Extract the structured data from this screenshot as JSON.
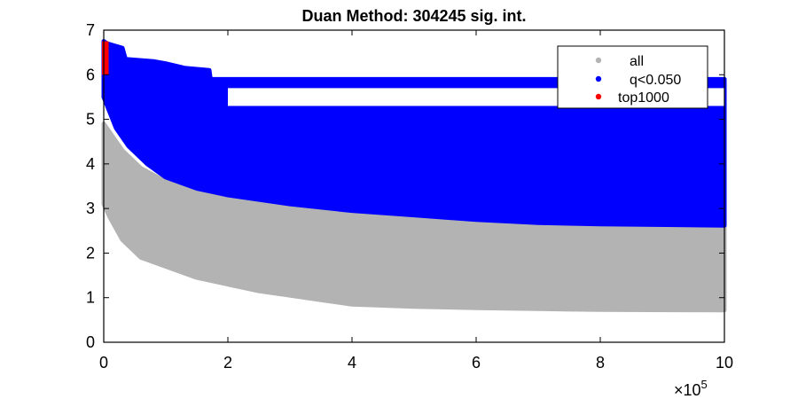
{
  "chart_data": {
    "type": "scatter",
    "title": "Duan Method: 304245 sig. int.",
    "xlabel": "",
    "ylabel": "",
    "x_exponent_label": "×10",
    "x_exponent_power": "5",
    "x_scale_factor": 100000,
    "xlim": [
      0,
      10
    ],
    "ylim": [
      0,
      7
    ],
    "xticks": [
      0,
      2,
      4,
      6,
      8,
      10
    ],
    "yticks": [
      0,
      1,
      2,
      3,
      4,
      5,
      6,
      7
    ],
    "grid": false,
    "legend_position": "top-right",
    "series": [
      {
        "name": "all",
        "color": "#b3b3b3",
        "upper_envelope": [
          [
            0,
            4.9
          ],
          [
            0.3,
            4.3
          ],
          [
            0.6,
            3.9
          ],
          [
            1,
            3.6
          ],
          [
            1.5,
            3.4
          ],
          [
            2,
            3.25
          ],
          [
            3,
            3.05
          ],
          [
            4,
            2.9
          ],
          [
            5,
            2.8
          ],
          [
            6,
            2.7
          ],
          [
            7,
            2.65
          ],
          [
            8,
            2.62
          ],
          [
            10,
            2.6
          ]
        ],
        "lower_envelope": [
          [
            0,
            3.1
          ],
          [
            0.1,
            2.8
          ],
          [
            0.3,
            2.3
          ],
          [
            0.6,
            1.9
          ],
          [
            1,
            1.7
          ],
          [
            1.5,
            1.45
          ],
          [
            2,
            1.3
          ],
          [
            2.5,
            1.15
          ],
          [
            3,
            1.05
          ],
          [
            3.5,
            0.95
          ],
          [
            4,
            0.85
          ],
          [
            5,
            0.8
          ],
          [
            6,
            0.77
          ],
          [
            7,
            0.75
          ],
          [
            8,
            0.73
          ],
          [
            10,
            0.72
          ]
        ]
      },
      {
        "name": "q<0.050",
        "color": "#0000ff",
        "upper_envelope": [
          [
            0,
            6.75
          ],
          [
            0.05,
            6.7
          ],
          [
            0.3,
            6.6
          ],
          [
            0.35,
            6.35
          ],
          [
            0.8,
            6.3
          ],
          [
            1.0,
            6.25
          ],
          [
            1.3,
            6.15
          ],
          [
            1.7,
            6.1
          ],
          [
            1.72,
            5.9
          ],
          [
            10,
            5.9
          ]
        ],
        "lower_envelope": [
          [
            0,
            5.5
          ],
          [
            0.2,
            4.8
          ],
          [
            0.4,
            4.4
          ],
          [
            0.7,
            4.0
          ],
          [
            1,
            3.7
          ],
          [
            1.5,
            3.45
          ],
          [
            2,
            3.3
          ],
          [
            3,
            3.1
          ],
          [
            4,
            2.95
          ],
          [
            5,
            2.85
          ],
          [
            6,
            2.75
          ],
          [
            7,
            2.68
          ],
          [
            8,
            2.65
          ],
          [
            10,
            2.62
          ]
        ],
        "gap_band": [
          [
            2,
            5.3,
            5.7
          ],
          [
            10,
            5.3,
            5.7
          ]
        ]
      },
      {
        "name": "top1000",
        "color": "#ff0000",
        "x_range": [
          0,
          0.05
        ],
        "y_range": [
          6.0,
          6.75
        ]
      }
    ]
  }
}
